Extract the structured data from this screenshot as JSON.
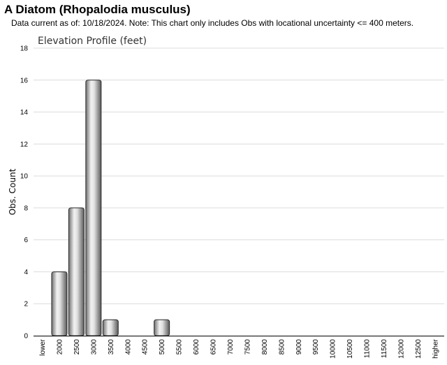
{
  "header": {
    "title": "A Diatom   (Rhopalodia musculus)",
    "subtitle": "Data current as of: 10/18/2024.    Note: This chart only includes Obs with locational uncertainty <= 400 meters."
  },
  "chart_data": {
    "type": "bar",
    "title": "Elevation Profile (feet)",
    "xlabel": "",
    "ylabel": "Obs. Count",
    "ylim": [
      0,
      18
    ],
    "yticks": [
      0,
      2,
      4,
      6,
      8,
      10,
      12,
      14,
      16,
      18
    ],
    "grid": true,
    "legend": "none",
    "bar_color": "#a0a0a0",
    "categories": [
      "lower",
      "2000",
      "2500",
      "3000",
      "3500",
      "4000",
      "4500",
      "5000",
      "5500",
      "6000",
      "6500",
      "7000",
      "7500",
      "8000",
      "8500",
      "9000",
      "9500",
      "10000",
      "10500",
      "11000",
      "11500",
      "12000",
      "12500",
      "higher"
    ],
    "values": [
      0,
      4,
      8,
      16,
      1,
      0,
      0,
      1,
      0,
      0,
      0,
      0,
      0,
      0,
      0,
      0,
      0,
      0,
      0,
      0,
      0,
      0,
      0,
      0
    ]
  }
}
